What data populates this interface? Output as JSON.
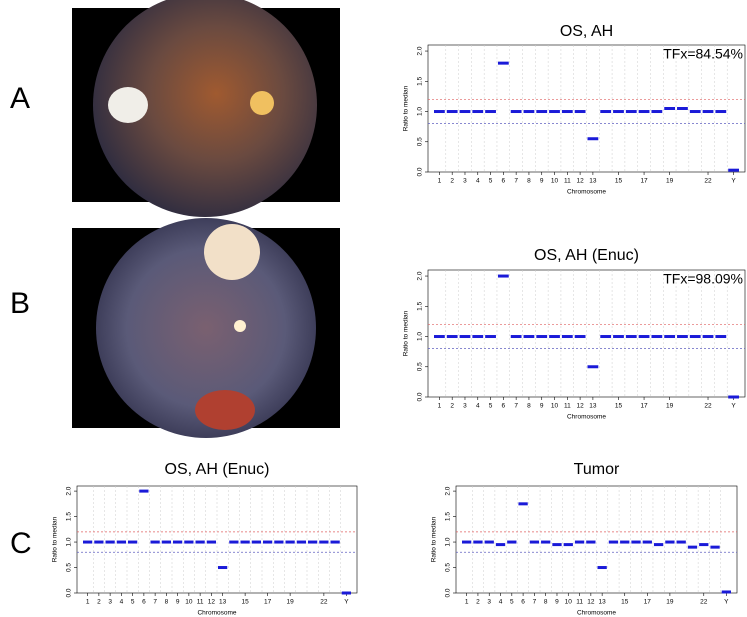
{
  "panel_labels": [
    "A",
    "B",
    "C"
  ],
  "chart_data": [
    {
      "type": "segment",
      "title": "OS, AH",
      "annotation": "TFx=84.54%",
      "x_label": "Chromosome",
      "y_label": "Ratio to median",
      "categories": [
        "1",
        "2",
        "3",
        "4",
        "5",
        "6",
        "7",
        "8",
        "9",
        "10",
        "11",
        "12",
        "13",
        null,
        "15",
        null,
        "17",
        null,
        "19",
        null,
        null,
        "22",
        null,
        "Y"
      ],
      "series": [
        {
          "color": "#1a1ad8",
          "values": [
            1,
            1,
            1,
            1,
            1,
            1.8,
            1,
            1,
            1,
            1,
            1,
            1,
            0.55,
            1,
            1,
            1,
            1,
            1,
            1.05,
            1.05,
            1,
            1,
            1,
            0.03
          ]
        }
      ],
      "ylim": [
        0,
        2.1
      ],
      "yticks": [
        {
          "value": 0,
          "label": "0.0"
        },
        {
          "value": 0.5,
          "label": "0.5"
        },
        {
          "value": 1,
          "label": "1.0"
        },
        {
          "value": 1.5,
          "label": "1.5"
        },
        {
          "value": 2,
          "label": "2.0"
        }
      ],
      "ref_lines": [
        {
          "value": 1.2,
          "color": "#e06060"
        },
        {
          "value": 0.8,
          "color": "#6060c0"
        }
      ]
    },
    {
      "type": "segment",
      "title": "OS, AH (Enuc)",
      "annotation": "TFx=98.09%",
      "x_label": "Chromosome",
      "y_label": "Ratio to median",
      "categories": [
        "1",
        "2",
        "3",
        "4",
        "5",
        "6",
        "7",
        "8",
        "9",
        "10",
        "11",
        "12",
        "13",
        null,
        "15",
        null,
        "17",
        null,
        "19",
        null,
        null,
        "22",
        null,
        "Y"
      ],
      "series": [
        {
          "color": "#1a1ad8",
          "values": [
            1,
            1,
            1,
            1,
            1,
            2,
            1,
            1,
            1,
            1,
            1,
            1,
            0.5,
            1,
            1,
            1,
            1,
            1,
            1,
            1,
            1,
            1,
            1,
            0
          ]
        }
      ],
      "ylim": [
        0,
        2.1
      ],
      "yticks": [
        {
          "value": 0,
          "label": "0.0"
        },
        {
          "value": 0.5,
          "label": "0.5"
        },
        {
          "value": 1,
          "label": "1.0"
        },
        {
          "value": 1.5,
          "label": "1.5"
        },
        {
          "value": 2,
          "label": "2.0"
        }
      ],
      "ref_lines": [
        {
          "value": 1.2,
          "color": "#e06060"
        },
        {
          "value": 0.8,
          "color": "#6060c0"
        }
      ]
    },
    {
      "type": "segment",
      "title": "OS, AH (Enuc)",
      "x_label": "Chromosome",
      "y_label": "Ratio to median",
      "categories": [
        "1",
        "2",
        "3",
        "4",
        "5",
        "6",
        "7",
        "8",
        "9",
        "10",
        "11",
        "12",
        "13",
        null,
        "15",
        null,
        "17",
        null,
        "19",
        null,
        null,
        "22",
        null,
        "Y"
      ],
      "series": [
        {
          "color": "#1a1ad8",
          "values": [
            1,
            1,
            1,
            1,
            1,
            2,
            1,
            1,
            1,
            1,
            1,
            1,
            0.5,
            1,
            1,
            1,
            1,
            1,
            1,
            1,
            1,
            1,
            1,
            0
          ]
        }
      ],
      "ylim": [
        0,
        2.1
      ],
      "yticks": [
        {
          "value": 0,
          "label": "0.0"
        },
        {
          "value": 0.5,
          "label": "0.5"
        },
        {
          "value": 1,
          "label": "1.0"
        },
        {
          "value": 1.5,
          "label": "1.5"
        },
        {
          "value": 2,
          "label": "2.0"
        }
      ],
      "ref_lines": [
        {
          "value": 1.2,
          "color": "#e06060"
        },
        {
          "value": 0.8,
          "color": "#6060c0"
        }
      ]
    },
    {
      "type": "segment",
      "title": "Tumor",
      "x_label": "Chromosome",
      "y_label": "Ratio to median",
      "categories": [
        "1",
        "2",
        "3",
        "4",
        "5",
        "6",
        "7",
        "8",
        "9",
        "10",
        "11",
        "12",
        "13",
        null,
        "15",
        null,
        "17",
        null,
        "19",
        null,
        null,
        "22",
        null,
        "Y"
      ],
      "series": [
        {
          "color": "#1a1ad8",
          "values": [
            1,
            1,
            1,
            0.95,
            1,
            1.75,
            1,
            1,
            0.95,
            0.95,
            1,
            1,
            0.5,
            1,
            1,
            1,
            1,
            0.95,
            1,
            1,
            0.9,
            0.95,
            0.9,
            0.02
          ]
        }
      ],
      "ylim": [
        0,
        2.1
      ],
      "yticks": [
        {
          "value": 0,
          "label": "0.0"
        },
        {
          "value": 0.5,
          "label": "0.5"
        },
        {
          "value": 1,
          "label": "1.0"
        },
        {
          "value": 1.5,
          "label": "1.5"
        },
        {
          "value": 2,
          "label": "2.0"
        }
      ],
      "ref_lines": [
        {
          "value": 1.2,
          "color": "#e06060"
        },
        {
          "value": 0.8,
          "color": "#6060c0"
        }
      ]
    }
  ]
}
